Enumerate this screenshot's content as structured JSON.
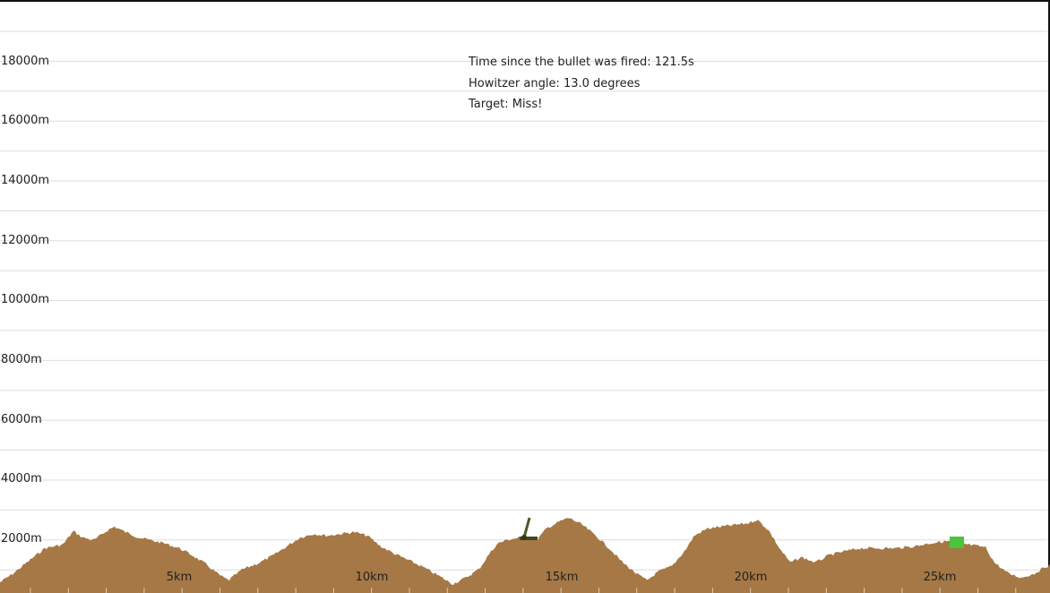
{
  "info": {
    "time_text": "Time since the bullet was fired: 121.5s",
    "angle_text": "Howitzer angle: 13.0 degrees",
    "target_text": "Target: Miss!"
  },
  "y_axis": {
    "labels": [
      "2000m",
      "4000m",
      "6000m",
      "8000m",
      "10000m",
      "12000m",
      "14000m",
      "16000m",
      "18000m"
    ]
  },
  "x_axis": {
    "labels": [
      "5km",
      "10km",
      "15km",
      "20km",
      "25km"
    ]
  },
  "colors": {
    "terrain": "#a57845",
    "target": "#4cc43b",
    "howitzer": "#4b5a2a",
    "grid": "#dedede",
    "frame": "#111111"
  },
  "objects": {
    "howitzer_icon": "howitzer-icon",
    "target_icon": "target-marker-icon"
  }
}
